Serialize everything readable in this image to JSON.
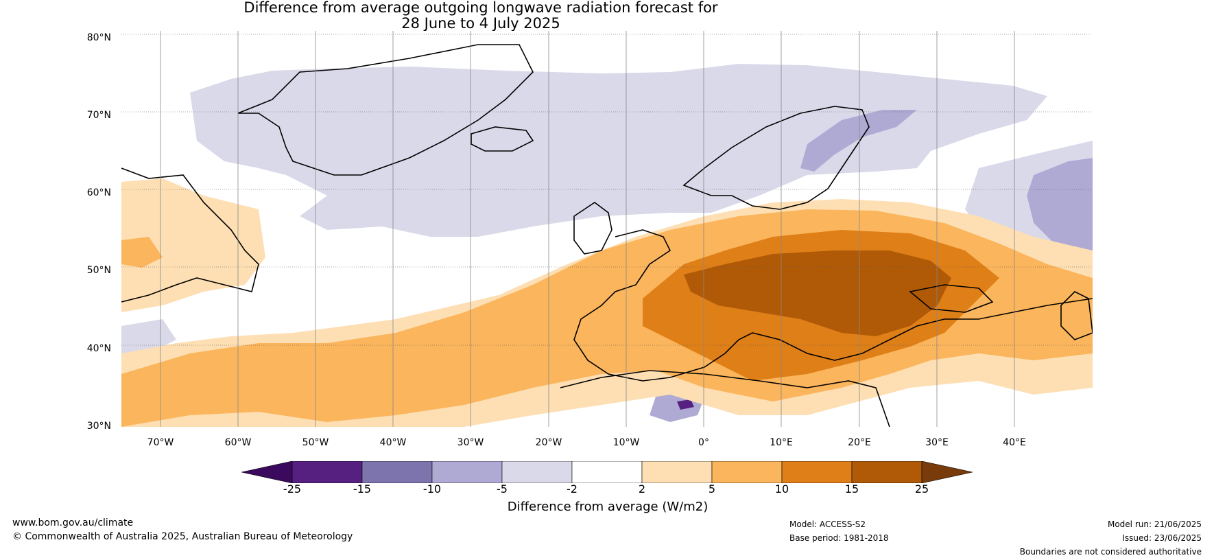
{
  "title": {
    "line1": "Difference from average outgoing longwave radiation forecast for",
    "line2": "28 June to 4 July 2025"
  },
  "map": {
    "lat_labels": [
      "80°N",
      "70°N",
      "60°N",
      "50°N",
      "40°N",
      "30°N"
    ],
    "lon_labels": [
      "70°W",
      "60°W",
      "50°W",
      "40°W",
      "30°W",
      "20°W",
      "10°W",
      "0°",
      "10°E",
      "20°E",
      "30°E",
      "40°E"
    ],
    "lon_range": [
      -75,
      50
    ],
    "lat_range": [
      30,
      81
    ]
  },
  "colorbar": {
    "ticks": [
      "-25",
      "-15",
      "-10",
      "-5",
      "-2",
      "2",
      "5",
      "10",
      "15",
      "25"
    ],
    "colors": [
      "#3b0a5e",
      "#55207f",
      "#7e74ad",
      "#aeaad3",
      "#d9d9ea",
      "#ffffff",
      "#fddfb3",
      "#fbb55c",
      "#df7f17",
      "#b05a08",
      "#7a3b0a"
    ],
    "label": "Difference from average (W/m2)"
  },
  "footer": {
    "website": "www.bom.gov.au/climate",
    "copyright": "© Commonwealth of Australia 2025, Australian Bureau of Meteorology",
    "model": "Model: ACCESS-S2",
    "base_period": "Base period: 1981-2018",
    "model_run": "Model run: 21/06/2025",
    "issued": "Issued: 23/06/2025",
    "disclaimer": "Boundaries are not considered authoritative"
  }
}
